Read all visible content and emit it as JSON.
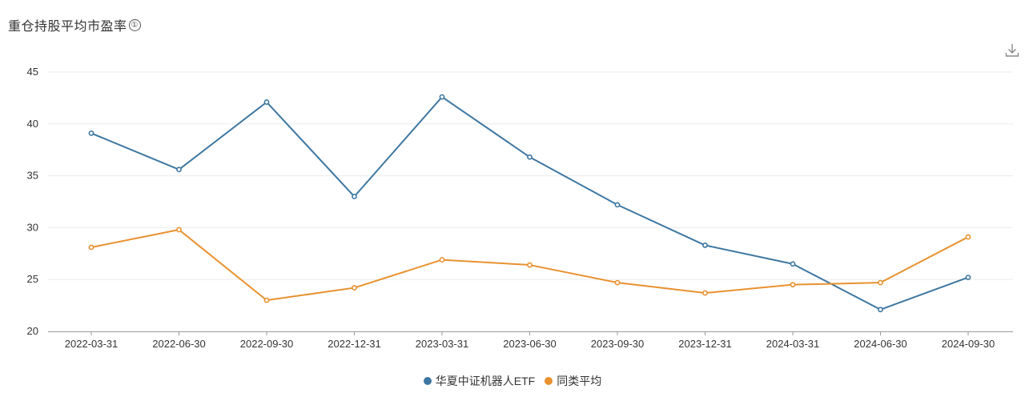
{
  "header": {
    "title": "重仓持股平均市盈率",
    "info_icon": "①",
    "download_icon": "download-icon"
  },
  "colors": {
    "series_1": "#3d77a1",
    "series_2": "#e8912f",
    "grid": "#ececec",
    "axis": "#999999"
  },
  "chart_data": {
    "type": "line",
    "title": "重仓持股平均市盈率",
    "xlabel": "",
    "ylabel": "",
    "ylim": [
      20,
      45
    ],
    "yticks": [
      20,
      25,
      30,
      35,
      40,
      45
    ],
    "grid": true,
    "legend_position": "bottom-center",
    "categories": [
      "2022-03-31",
      "2022-06-30",
      "2022-09-30",
      "2022-12-31",
      "2023-03-31",
      "2023-06-30",
      "2023-09-30",
      "2023-12-31",
      "2024-03-31",
      "2024-06-30",
      "2024-09-30"
    ],
    "series": [
      {
        "name": "华夏中证机器人ETF",
        "color": "#3d77a1",
        "values": [
          39.1,
          35.6,
          42.1,
          33.0,
          42.6,
          36.8,
          32.2,
          28.3,
          26.5,
          22.1,
          25.2
        ]
      },
      {
        "name": "同类平均",
        "color": "#e8912f",
        "values": [
          28.1,
          29.8,
          23.0,
          24.2,
          26.9,
          26.4,
          24.7,
          23.7,
          24.5,
          24.7,
          29.1
        ]
      }
    ]
  }
}
